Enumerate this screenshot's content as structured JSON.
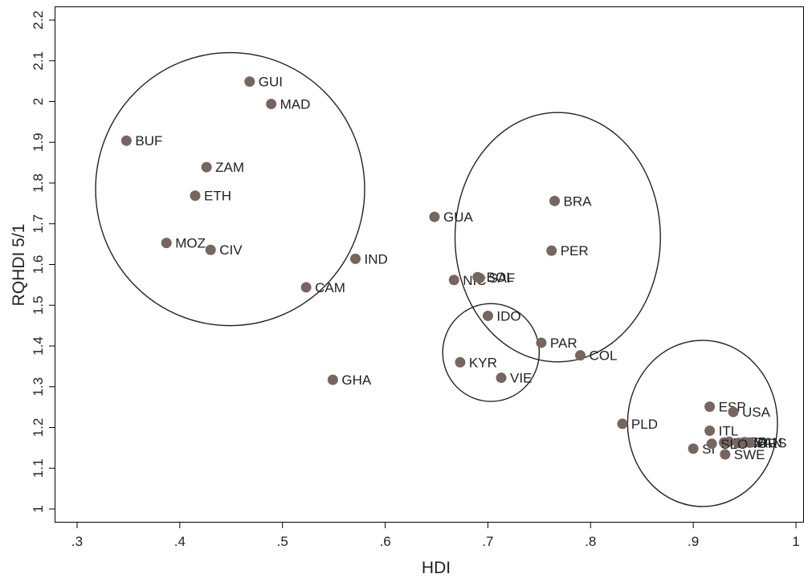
{
  "chart_data": {
    "type": "scatter",
    "title": "",
    "xlabel": "HDI",
    "ylabel": "RQHDI 5/1",
    "xlim": [
      0.3,
      1.0
    ],
    "ylim": [
      1.0,
      2.2
    ],
    "xticks": [
      ".3",
      ".4",
      ".5",
      ".6",
      ".7",
      ".8",
      ".9",
      "1"
    ],
    "yticks": [
      "1",
      "1.1",
      "1.2",
      "1.3",
      "1.4",
      "1.5",
      "1.6",
      "1.7",
      "1.8",
      "1.9",
      "2",
      "2.1",
      "2.2"
    ],
    "grid": false,
    "marker_color": "#76665f",
    "points": [
      {
        "label": "GUI",
        "x": 0.468,
        "y": 2.049
      },
      {
        "label": "MAD",
        "x": 0.489,
        "y": 1.994
      },
      {
        "label": "BUF",
        "x": 0.348,
        "y": 1.904
      },
      {
        "label": "ZAM",
        "x": 0.426,
        "y": 1.839
      },
      {
        "label": "ETH",
        "x": 0.415,
        "y": 1.769
      },
      {
        "label": "MOZ",
        "x": 0.387,
        "y": 1.653
      },
      {
        "label": "CIV",
        "x": 0.43,
        "y": 1.636
      },
      {
        "label": "IND",
        "x": 0.571,
        "y": 1.614
      },
      {
        "label": "CAM",
        "x": 0.523,
        "y": 1.544
      },
      {
        "label": "GHA",
        "x": 0.549,
        "y": 1.317
      },
      {
        "label": "GUA",
        "x": 0.648,
        "y": 1.717
      },
      {
        "label": "BRA",
        "x": 0.765,
        "y": 1.756
      },
      {
        "label": "PER",
        "x": 0.762,
        "y": 1.634
      },
      {
        "label": "NIC",
        "x": 0.667,
        "y": 1.562
      },
      {
        "label": "BOL",
        "x": 0.69,
        "y": 1.569
      },
      {
        "label": "SAF",
        "x": 0.692,
        "y": 1.567
      },
      {
        "label": "IDO",
        "x": 0.7,
        "y": 1.474
      },
      {
        "label": "PAR",
        "x": 0.752,
        "y": 1.408
      },
      {
        "label": "COL",
        "x": 0.79,
        "y": 1.377
      },
      {
        "label": "KYR",
        "x": 0.673,
        "y": 1.36
      },
      {
        "label": "VIE",
        "x": 0.713,
        "y": 1.322
      },
      {
        "label": "PLD",
        "x": 0.831,
        "y": 1.209
      },
      {
        "label": "ESP",
        "x": 0.916,
        "y": 1.251
      },
      {
        "label": "USA",
        "x": 0.939,
        "y": 1.238
      },
      {
        "label": "ITL",
        "x": 0.916,
        "y": 1.192
      },
      {
        "label": "SI",
        "x": 0.9,
        "y": 1.148
      },
      {
        "label": "SWE",
        "x": 0.931,
        "y": 1.134
      },
      {
        "label": "FRA",
        "x": 0.93,
        "y": 1.163
      },
      {
        "label": "GER",
        "x": 0.935,
        "y": 1.165
      },
      {
        "label": "NOR",
        "x": 0.944,
        "y": 1.162
      },
      {
        "label": "CAN",
        "x": 0.95,
        "y": 1.164
      },
      {
        "label": "AUS",
        "x": 0.955,
        "y": 1.163
      },
      {
        "label": "SLO",
        "x": 0.918,
        "y": 1.16
      }
    ],
    "clusters": [
      {
        "cx": 0.449,
        "cy": 1.785,
        "rx": 0.131,
        "ry": 0.335
      },
      {
        "cx": 0.768,
        "cy": 1.667,
        "rx": 0.1,
        "ry": 0.306
      },
      {
        "cx": 0.703,
        "cy": 1.384,
        "rx": 0.047,
        "ry": 0.12
      },
      {
        "cx": 0.909,
        "cy": 1.21,
        "rx": 0.073,
        "ry": 0.204
      }
    ]
  }
}
